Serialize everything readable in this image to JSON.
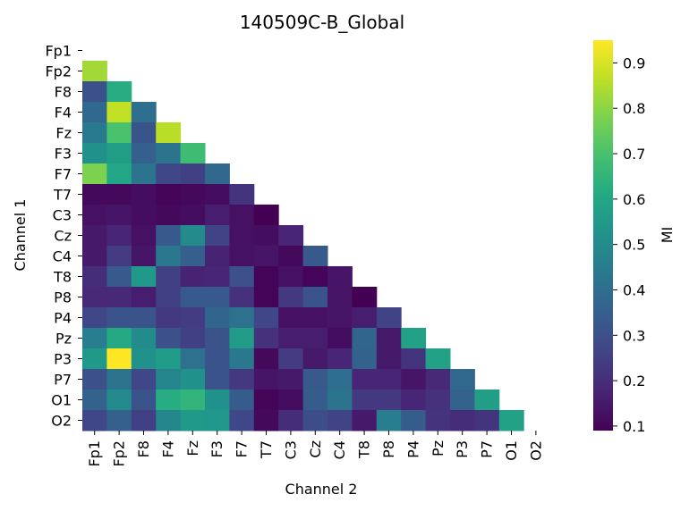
{
  "chart_data": {
    "type": "heatmap",
    "title": "140509C-B_Global",
    "xlabel": "Channel 2",
    "ylabel": "Channel 1",
    "colorbar_label": "MI",
    "colormap": "viridis",
    "vmin": 0.09,
    "vmax": 0.95,
    "colorbar_ticks": [
      "0.1",
      "0.2",
      "0.3",
      "0.4",
      "0.5",
      "0.6",
      "0.7",
      "0.8",
      "0.9"
    ],
    "channels": [
      "Fp1",
      "Fp2",
      "F8",
      "F4",
      "Fz",
      "F3",
      "F7",
      "T7",
      "C3",
      "Cz",
      "C4",
      "T8",
      "P8",
      "P4",
      "Pz",
      "P3",
      "P7",
      "O1",
      "O2"
    ],
    "mask": "upper triangle (including diagonal) not shown",
    "values": [
      [],
      [
        0.83
      ],
      [
        0.3,
        0.62
      ],
      [
        0.38,
        0.87,
        0.4
      ],
      [
        0.44,
        0.7,
        0.31,
        0.86
      ],
      [
        0.52,
        0.57,
        0.35,
        0.42,
        0.68
      ],
      [
        0.78,
        0.6,
        0.42,
        0.27,
        0.25,
        0.38
      ],
      [
        0.11,
        0.11,
        0.12,
        0.1,
        0.11,
        0.12,
        0.22
      ],
      [
        0.13,
        0.14,
        0.12,
        0.11,
        0.12,
        0.16,
        0.13,
        0.09
      ],
      [
        0.15,
        0.18,
        0.13,
        0.33,
        0.5,
        0.26,
        0.13,
        0.12,
        0.18
      ],
      [
        0.15,
        0.24,
        0.14,
        0.43,
        0.35,
        0.17,
        0.13,
        0.14,
        0.11,
        0.33
      ],
      [
        0.2,
        0.33,
        0.55,
        0.25,
        0.17,
        0.18,
        0.3,
        0.1,
        0.13,
        0.1,
        0.14
      ],
      [
        0.19,
        0.19,
        0.16,
        0.25,
        0.33,
        0.33,
        0.21,
        0.1,
        0.23,
        0.31,
        0.14,
        0.09
      ],
      [
        0.27,
        0.31,
        0.31,
        0.23,
        0.24,
        0.37,
        0.41,
        0.27,
        0.13,
        0.13,
        0.14,
        0.16,
        0.26
      ],
      [
        0.45,
        0.61,
        0.5,
        0.3,
        0.25,
        0.31,
        0.56,
        0.21,
        0.16,
        0.16,
        0.12,
        0.37,
        0.15,
        0.58
      ],
      [
        0.55,
        0.95,
        0.52,
        0.56,
        0.41,
        0.31,
        0.43,
        0.11,
        0.24,
        0.15,
        0.18,
        0.36,
        0.15,
        0.22,
        0.58
      ],
      [
        0.3,
        0.42,
        0.27,
        0.48,
        0.52,
        0.31,
        0.23,
        0.14,
        0.15,
        0.33,
        0.4,
        0.18,
        0.18,
        0.14,
        0.19,
        0.38
      ],
      [
        0.36,
        0.5,
        0.31,
        0.62,
        0.65,
        0.52,
        0.34,
        0.1,
        0.12,
        0.34,
        0.42,
        0.23,
        0.23,
        0.18,
        0.21,
        0.36,
        0.57
      ],
      [
        0.27,
        0.35,
        0.25,
        0.48,
        0.55,
        0.54,
        0.27,
        0.11,
        0.2,
        0.29,
        0.26,
        0.15,
        0.45,
        0.34,
        0.22,
        0.2,
        0.22,
        0.58
      ]
    ]
  }
}
